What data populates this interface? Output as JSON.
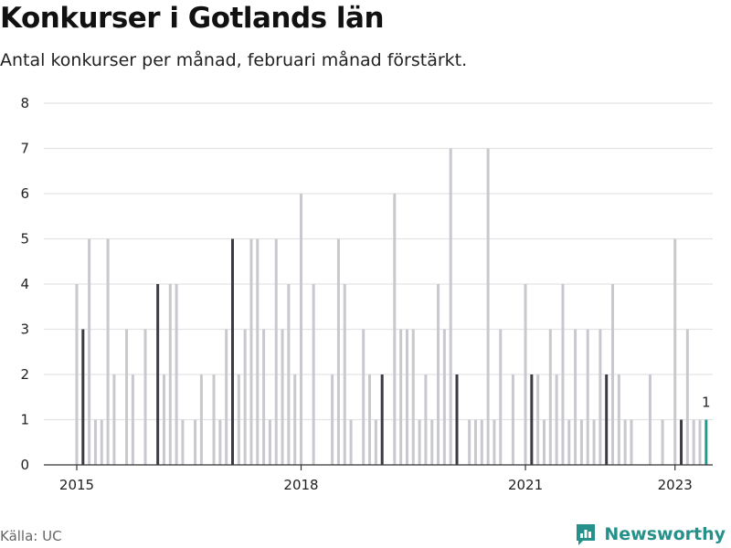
{
  "header": {
    "title": "Konkurser i Gotlands län",
    "subtitle": "Antal konkurser per månad, februari månad förstärkt."
  },
  "footer": {
    "source": "Källa: UC",
    "brand": "Newsworthy"
  },
  "colors": {
    "bar": "#c9c8ce",
    "highlight": "#3c3a44",
    "last": "#1f9b90",
    "grid": "#e3e3e3",
    "axis": "#333333",
    "brand": "#25918a"
  },
  "chart_data": {
    "type": "bar",
    "title": "Konkurser i Gotlands län",
    "subtitle": "Antal konkurser per månad, februari månad förstärkt.",
    "xlabel": "",
    "ylabel": "",
    "ylim": [
      0,
      8
    ],
    "yticks": [
      0,
      1,
      2,
      3,
      4,
      5,
      6,
      7,
      8
    ],
    "xticks": [
      {
        "date": "2015-01",
        "label": "2015"
      },
      {
        "date": "2018-01",
        "label": "2018"
      },
      {
        "date": "2021-01",
        "label": "2021"
      },
      {
        "date": "2023-01",
        "label": "2023"
      }
    ],
    "grid": true,
    "start_month": "2015-01",
    "highlight_month": "februari",
    "last_value_label": "1",
    "values": [
      4,
      3,
      5,
      1,
      1,
      5,
      2,
      0,
      3,
      2,
      0,
      3,
      0,
      4,
      2,
      4,
      4,
      1,
      0,
      1,
      2,
      0,
      2,
      1,
      3,
      5,
      2,
      3,
      5,
      5,
      3,
      1,
      5,
      3,
      4,
      2,
      6,
      0,
      4,
      0,
      0,
      2,
      5,
      4,
      1,
      0,
      3,
      2,
      1,
      2,
      0,
      6,
      3,
      3,
      3,
      1,
      2,
      1,
      4,
      3,
      7,
      2,
      0,
      1,
      1,
      1,
      7,
      1,
      3,
      0,
      2,
      0,
      4,
      2,
      2,
      1,
      3,
      2,
      4,
      1,
      3,
      1,
      3,
      1,
      3,
      2,
      4,
      2,
      1,
      1,
      0,
      0,
      2,
      0,
      1,
      0,
      5,
      1,
      3,
      1,
      1,
      1
    ]
  }
}
